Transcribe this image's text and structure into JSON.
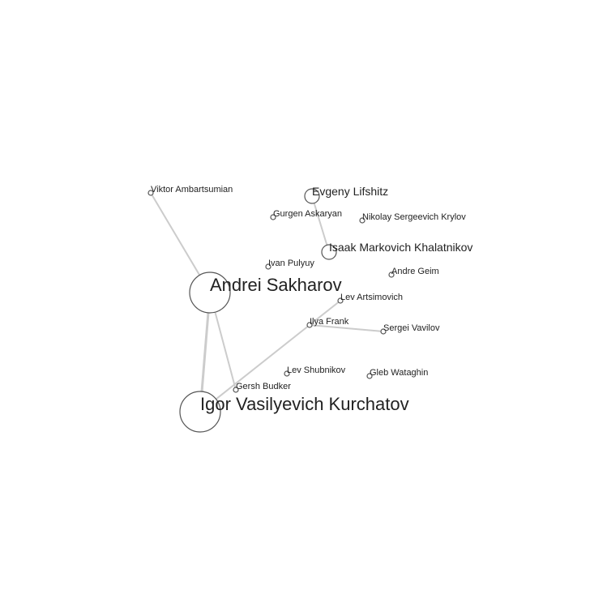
{
  "graph": {
    "nodes": [
      {
        "id": "sakharov",
        "label": "Andrei Sakharov",
        "size": "large"
      },
      {
        "id": "kurchatov",
        "label": "Igor Vasilyevich Kurchatov",
        "size": "large"
      },
      {
        "id": "lifshitz",
        "label": "Evgeny Lifshitz",
        "size": "medium"
      },
      {
        "id": "khalatnikov",
        "label": "Isaak Markovich Khalatnikov",
        "size": "medium"
      },
      {
        "id": "ambartsumian",
        "label": "Viktor Ambartsumian",
        "size": "small"
      },
      {
        "id": "askaryan",
        "label": "Gurgen Askaryan",
        "size": "small"
      },
      {
        "id": "krylov",
        "label": "Nikolay Sergeevich Krylov",
        "size": "small"
      },
      {
        "id": "pulyuy",
        "label": "Ivan Pulyuy",
        "size": "small"
      },
      {
        "id": "geim",
        "label": "Andre Geim",
        "size": "small"
      },
      {
        "id": "artsimovich",
        "label": "Lev Artsimovich",
        "size": "small"
      },
      {
        "id": "frank",
        "label": "Ilya Frank",
        "size": "small"
      },
      {
        "id": "vavilov",
        "label": "Sergei Vavilov",
        "size": "small"
      },
      {
        "id": "shubnikov",
        "label": "Lev Shubnikov",
        "size": "small"
      },
      {
        "id": "wataghin",
        "label": "Gleb Wataghin",
        "size": "small"
      },
      {
        "id": "budker",
        "label": "Gersh Budker",
        "size": "small"
      }
    ],
    "edges": [
      {
        "source": "sakharov",
        "target": "ambartsumian"
      },
      {
        "source": "sakharov",
        "target": "kurchatov"
      },
      {
        "source": "sakharov",
        "target": "budker"
      },
      {
        "source": "lifshitz",
        "target": "khalatnikov"
      },
      {
        "source": "artsimovich",
        "target": "frank"
      },
      {
        "source": "frank",
        "target": "kurchatov"
      },
      {
        "source": "frank",
        "target": "vavilov"
      }
    ]
  }
}
